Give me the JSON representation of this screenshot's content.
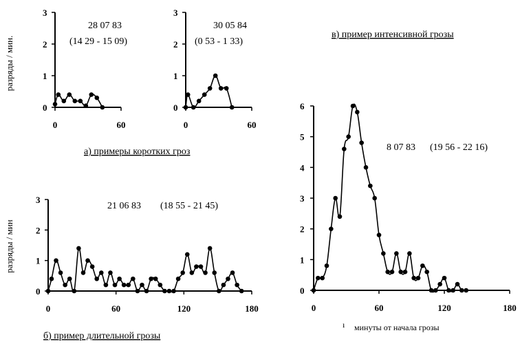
{
  "page": {
    "ylabel_top": "разряды / мин.",
    "ylabel_bottom": "разряды / мин",
    "caption_a": "а) примеры коротких гроз",
    "caption_b": "б) пример длительной грозы",
    "caption_c": "в) пример интенсивной грозы",
    "xlabel_c": "минуты от начала грозы",
    "stray_mark": "ı"
  },
  "chart_data": [
    {
      "id": "a1",
      "type": "line",
      "date": "28 07 83",
      "time": "(14 29 - 15 09)",
      "xlim": [
        0,
        60
      ],
      "ylim": [
        0,
        3
      ],
      "xticks": [
        0,
        60
      ],
      "yticks": [
        0,
        1,
        2,
        3
      ],
      "x": [
        0,
        3,
        8,
        13,
        18,
        23,
        28,
        33,
        38,
        43
      ],
      "y": [
        0.1,
        0.4,
        0.2,
        0.4,
        0.2,
        0.2,
        0.05,
        0.4,
        0.3,
        0.0
      ]
    },
    {
      "id": "a2",
      "type": "line",
      "date": "30 05 84",
      "time": "(0 53 - 1 33)",
      "xlim": [
        0,
        60
      ],
      "ylim": [
        0,
        3
      ],
      "xticks": [
        0,
        60
      ],
      "yticks": [
        0,
        1,
        2,
        3
      ],
      "x": [
        0,
        2,
        7,
        12,
        17,
        22,
        27,
        32,
        37,
        42
      ],
      "y": [
        0.0,
        0.4,
        0.0,
        0.2,
        0.4,
        0.6,
        1.0,
        0.6,
        0.6,
        0.0
      ]
    },
    {
      "id": "b",
      "type": "line",
      "date": "21 06 83",
      "time": "(18 55 - 21 45)",
      "xlim": [
        0,
        180
      ],
      "ylim": [
        0,
        3
      ],
      "xticks": [
        0,
        60,
        120,
        180
      ],
      "yticks": [
        0,
        1,
        2,
        3
      ],
      "x": [
        0,
        3,
        7,
        11,
        15,
        19,
        23,
        27,
        31,
        35,
        39,
        43,
        47,
        51,
        55,
        59,
        63,
        67,
        71,
        75,
        79,
        83,
        87,
        91,
        95,
        99,
        103,
        107,
        111,
        115,
        119,
        123,
        127,
        131,
        135,
        139,
        143,
        147,
        151,
        155,
        159,
        163,
        167,
        171
      ],
      "y": [
        0.0,
        0.4,
        1.0,
        0.6,
        0.2,
        0.4,
        0.0,
        1.4,
        0.6,
        1.0,
        0.8,
        0.4,
        0.6,
        0.2,
        0.6,
        0.2,
        0.4,
        0.2,
        0.2,
        0.4,
        0.0,
        0.2,
        0.0,
        0.4,
        0.4,
        0.2,
        0.0,
        0.0,
        0.0,
        0.4,
        0.6,
        1.2,
        0.6,
        0.8,
        0.8,
        0.6,
        1.4,
        0.6,
        0.0,
        0.2,
        0.4,
        0.6,
        0.2,
        0.0
      ],
      "note": "x starts at origin; values sampled every ~4 min"
    },
    {
      "id": "c",
      "type": "line",
      "date": "8 07 83",
      "time": "(19 56 - 22 16)",
      "xlim": [
        0,
        180
      ],
      "ylim": [
        0,
        6
      ],
      "xticks": [
        0,
        60,
        120,
        180
      ],
      "yticks": [
        0,
        1,
        2,
        3,
        4,
        5,
        6
      ],
      "x": [
        0,
        4,
        8,
        12,
        16,
        20,
        24,
        28,
        32,
        36,
        40,
        44,
        48,
        52,
        56,
        60,
        64,
        68,
        72,
        76,
        80,
        84,
        88,
        92,
        96,
        100,
        104,
        108,
        112,
        116,
        120,
        124,
        128,
        132,
        136,
        140
      ],
      "y": [
        0.0,
        0.4,
        0.4,
        0.8,
        2.0,
        3.0,
        2.4,
        4.6,
        5.0,
        6.0,
        5.8,
        4.8,
        4.0,
        3.4,
        3.0,
        1.8,
        1.2,
        0.6,
        0.6,
        1.2,
        0.6,
        0.6,
        1.2,
        0.4,
        0.4,
        0.8,
        0.6,
        0.0,
        0.0,
        0.2,
        0.4,
        0.0,
        0.0,
        0.2,
        0.0,
        0.0
      ]
    }
  ]
}
